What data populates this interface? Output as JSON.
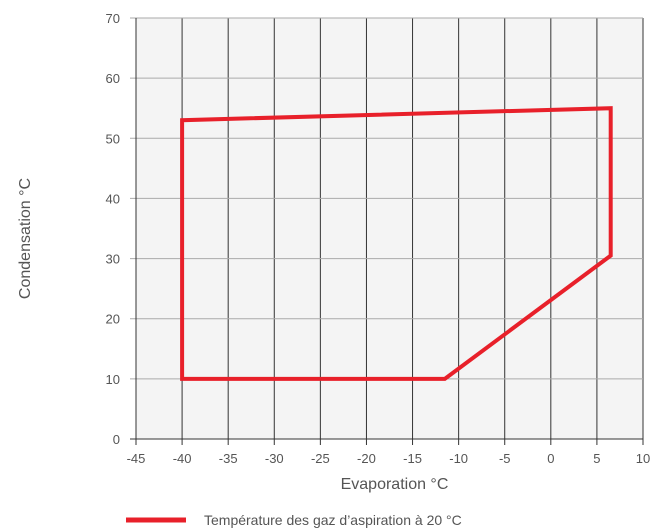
{
  "chart_data": {
    "type": "area",
    "title": "",
    "xlabel": "Evaporation °C",
    "ylabel": "Condensation °C",
    "xlim": [
      -45,
      10
    ],
    "ylim": [
      0,
      70
    ],
    "x_ticks": [
      -45,
      -40,
      -35,
      -30,
      -25,
      -20,
      -15,
      -10,
      -5,
      0,
      5,
      10
    ],
    "y_ticks": [
      0,
      10,
      20,
      30,
      40,
      50,
      60,
      70
    ],
    "grid": true,
    "legend_position": "bottom",
    "series": [
      {
        "name": "Température des gaz d’aspiration à 20 °C",
        "color": "#e8202a",
        "points": [
          {
            "x": -40,
            "y": 10
          },
          {
            "x": -40,
            "y": 53
          },
          {
            "x": 6.5,
            "y": 55
          },
          {
            "x": 6.5,
            "y": 30.5
          },
          {
            "x": -11.5,
            "y": 10
          }
        ],
        "closed": true
      }
    ]
  }
}
